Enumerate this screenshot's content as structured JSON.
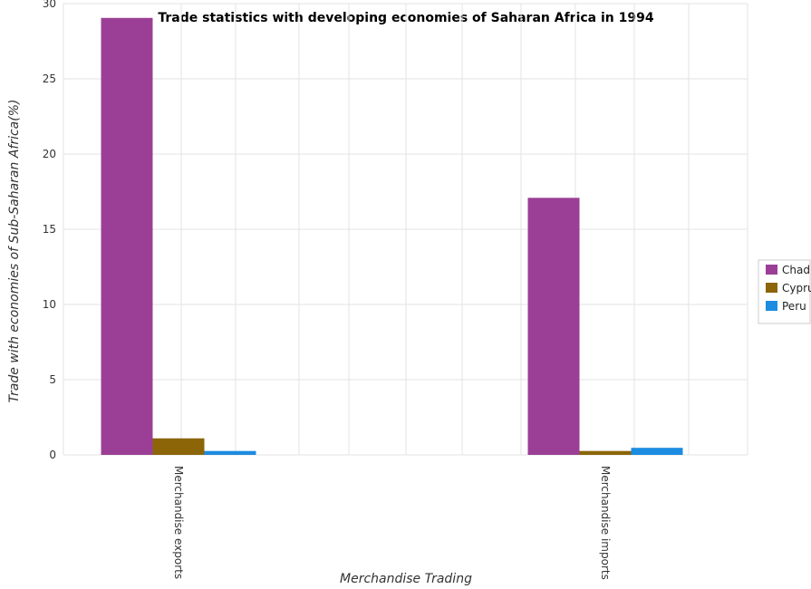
{
  "chart_data": {
    "type": "bar",
    "title": "Trade statistics with developing economies of Saharan Africa in 1994",
    "xlabel": "Merchandise Trading",
    "ylabel": "Trade with economies of Sub-Saharan Africa(%)",
    "categories": [
      "Merchandise exports",
      "Merchandise imports"
    ],
    "series": [
      {
        "name": "Chad",
        "color": "#9b3f96",
        "values": [
          29.05,
          17.09
        ]
      },
      {
        "name": "Cyprus",
        "color": "#8b6508",
        "values": [
          1.1,
          0.26
        ]
      },
      {
        "name": "Peru",
        "color": "#1c8ce0",
        "values": [
          0.26,
          0.47
        ]
      }
    ],
    "ylim": [
      0,
      30
    ],
    "yticks": [
      0,
      5,
      10,
      15,
      20,
      25,
      30
    ],
    "grid": true,
    "legend_position": "right"
  }
}
